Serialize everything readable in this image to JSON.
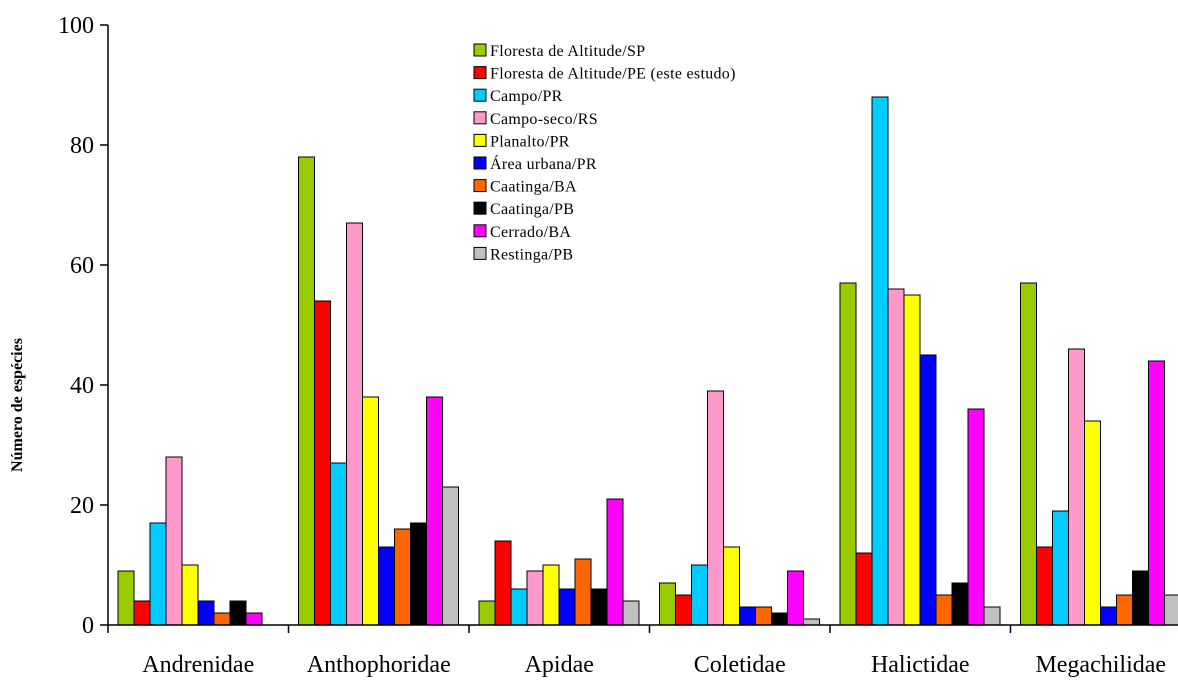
{
  "chart_data": {
    "type": "bar",
    "title": "",
    "xlabel": "",
    "ylabel": "Número de espécies",
    "ylim": [
      0,
      100
    ],
    "yticks": [
      "0",
      "20",
      "40",
      "60",
      "80",
      "100"
    ],
    "grid": false,
    "legend_position": "top-center",
    "categories": [
      "Andrenidae",
      "Anthophoridae",
      "Apidae",
      "Coletidae",
      "Halictidae",
      "Megachilidae"
    ],
    "series": [
      {
        "name": "Floresta de Altitude/SP",
        "color": "#99cc00",
        "values": [
          9,
          78,
          4,
          7,
          57,
          57
        ]
      },
      {
        "name": "Floresta de Altitude/PE (este estudo)",
        "color": "#ff0000",
        "values": [
          4,
          54,
          14,
          5,
          12,
          13
        ]
      },
      {
        "name": "Campo/PR",
        "color": "#00ccff",
        "values": [
          17,
          27,
          6,
          10,
          88,
          19
        ]
      },
      {
        "name": "Campo-seco/RS",
        "color": "#ff99cc",
        "values": [
          28,
          67,
          9,
          39,
          56,
          46
        ]
      },
      {
        "name": "Planalto/PR",
        "color": "#ffff00",
        "values": [
          10,
          38,
          10,
          13,
          55,
          34
        ]
      },
      {
        "name": "Área urbana/PR",
        "color": "#0000ff",
        "values": [
          4,
          13,
          6,
          3,
          45,
          3
        ]
      },
      {
        "name": "Caatinga/BA",
        "color": "#ff6600",
        "values": [
          2,
          16,
          11,
          3,
          5,
          5
        ]
      },
      {
        "name": "Caatinga/PB",
        "color": "#000000",
        "values": [
          4,
          17,
          6,
          2,
          7,
          9
        ]
      },
      {
        "name": "Cerrado/BA",
        "color": "#ff00ff",
        "values": [
          2,
          38,
          21,
          9,
          36,
          44
        ]
      },
      {
        "name": "Restinga/PB",
        "color": "#c0c0c0",
        "values": [
          0,
          23,
          4,
          1,
          3,
          5
        ]
      }
    ]
  }
}
